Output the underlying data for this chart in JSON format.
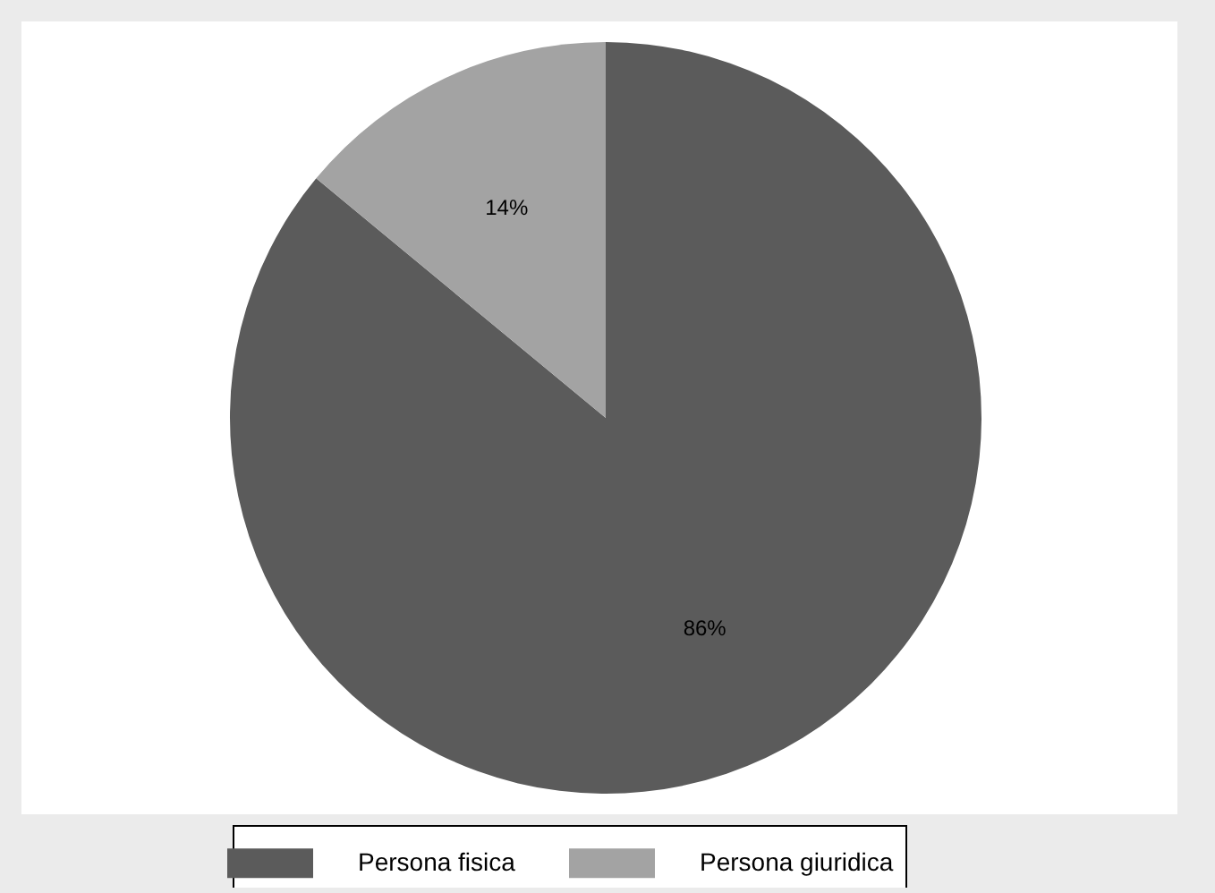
{
  "chart_data": {
    "type": "pie",
    "categories": [
      "Persona fisica",
      "Persona giuridica"
    ],
    "values": [
      86,
      14
    ],
    "colors": [
      "#5b5b5b",
      "#a3a3a3"
    ],
    "value_labels": [
      "86%",
      "14%"
    ],
    "legend": "bottom"
  }
}
